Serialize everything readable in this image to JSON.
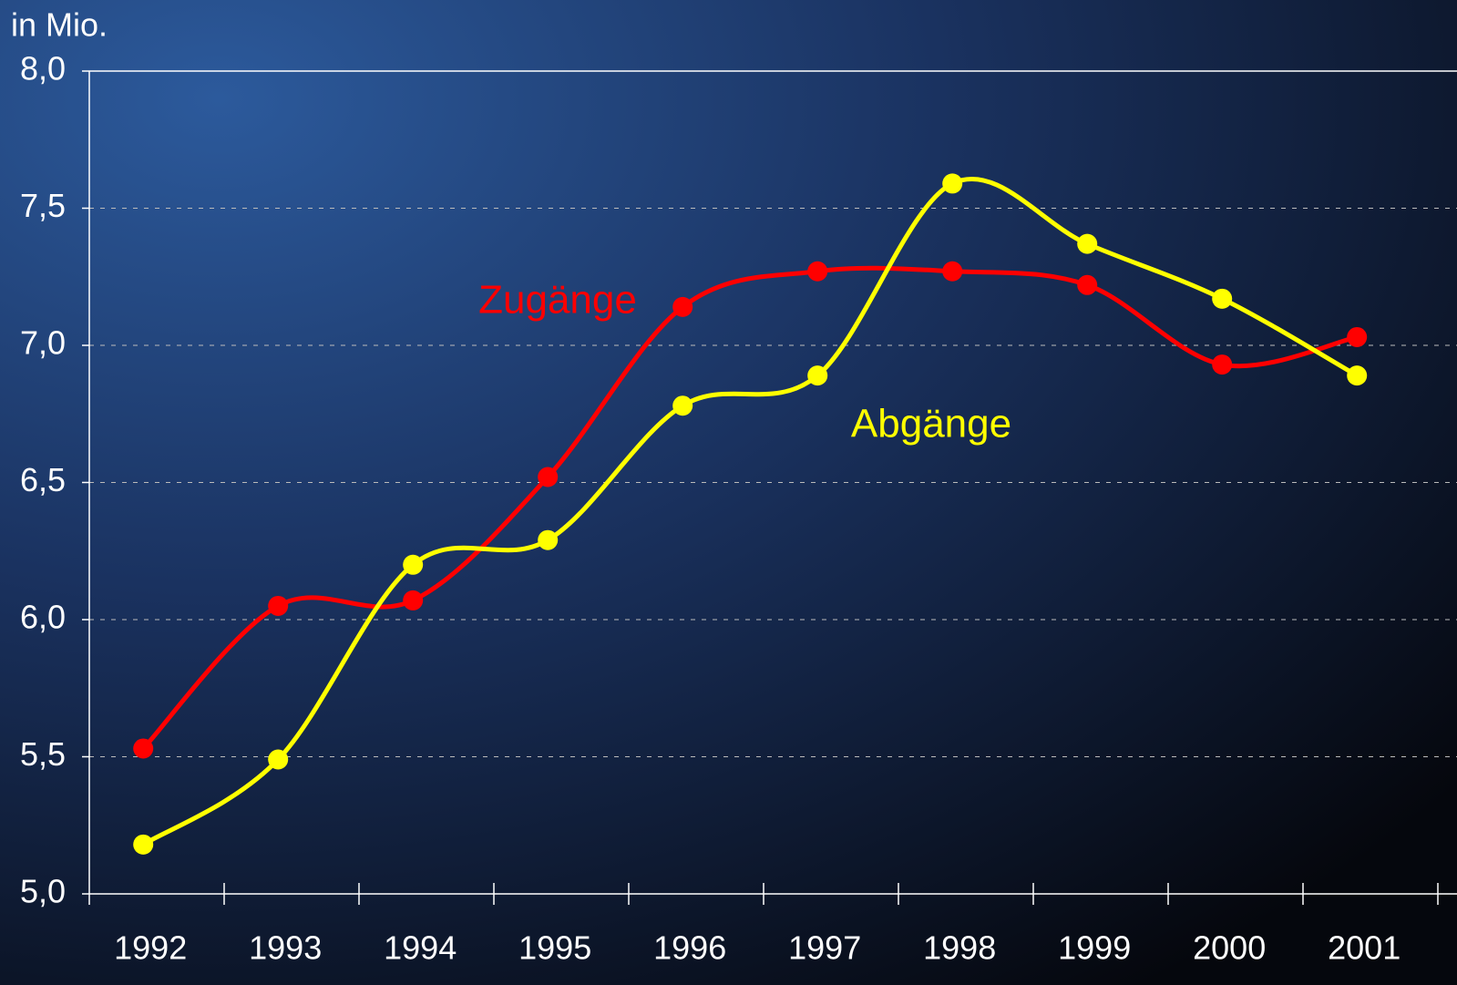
{
  "chart_data": {
    "type": "line",
    "y_label": "in Mio.",
    "categories": [
      "1992",
      "1993",
      "1994",
      "1995",
      "1996",
      "1997",
      "1998",
      "1999",
      "2000",
      "2001"
    ],
    "series": [
      {
        "name": "Zugänge",
        "color": "#ff0000",
        "values": [
          5.53,
          6.05,
          6.07,
          6.52,
          7.14,
          7.27,
          7.27,
          7.22,
          6.93,
          7.03
        ]
      },
      {
        "name": "Abgänge",
        "color": "#ffff00",
        "values": [
          5.18,
          5.49,
          6.2,
          6.29,
          6.78,
          6.89,
          7.59,
          7.37,
          7.17,
          6.89
        ]
      }
    ],
    "ylim": [
      5,
      8
    ],
    "yticks": [
      {
        "value": 5,
        "label": "5,0"
      },
      {
        "value": 5.5,
        "label": "5,5"
      },
      {
        "value": 6,
        "label": "6,0"
      },
      {
        "value": 6.5,
        "label": "6,5"
      },
      {
        "value": 7,
        "label": "7,0"
      },
      {
        "value": 7.5,
        "label": "7,5"
      },
      {
        "value": 8,
        "label": "8,0"
      }
    ],
    "grid": true
  }
}
